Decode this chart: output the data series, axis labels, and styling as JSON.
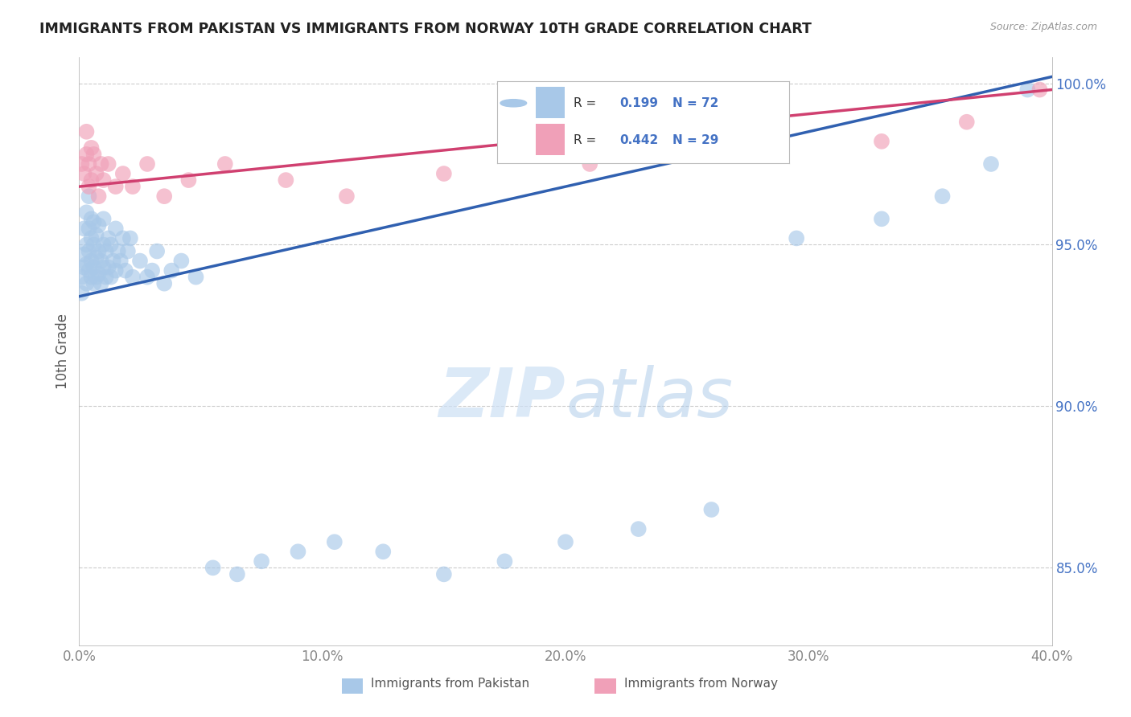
{
  "title": "IMMIGRANTS FROM PAKISTAN VS IMMIGRANTS FROM NORWAY 10TH GRADE CORRELATION CHART",
  "source": "Source: ZipAtlas.com",
  "ylabel": "10th Grade",
  "xlim": [
    0.0,
    0.4
  ],
  "ylim": [
    0.826,
    1.008
  ],
  "yticks": [
    0.85,
    0.9,
    0.95,
    1.0
  ],
  "ytick_labels": [
    "85.0%",
    "90.0%",
    "95.0%",
    "100.0%"
  ],
  "xticks": [
    0.0,
    0.1,
    0.2,
    0.3,
    0.4
  ],
  "xtick_labels": [
    "0.0%",
    "10.0%",
    "20.0%",
    "30.0%",
    "40.0%"
  ],
  "legend_labels": [
    "Immigrants from Pakistan",
    "Immigrants from Norway"
  ],
  "R_pakistan": 0.199,
  "N_pakistan": 72,
  "R_norway": 0.442,
  "N_norway": 29,
  "color_pakistan": "#A8C8E8",
  "color_norway": "#F0A0B8",
  "line_color_pakistan": "#3060B0",
  "line_color_norway": "#D04070",
  "line_color_text": "#4472C4",
  "pak_x": [
    0.001,
    0.001,
    0.002,
    0.002,
    0.002,
    0.003,
    0.003,
    0.003,
    0.003,
    0.004,
    0.004,
    0.004,
    0.004,
    0.005,
    0.005,
    0.005,
    0.005,
    0.006,
    0.006,
    0.006,
    0.006,
    0.007,
    0.007,
    0.007,
    0.008,
    0.008,
    0.008,
    0.009,
    0.009,
    0.01,
    0.01,
    0.01,
    0.011,
    0.011,
    0.012,
    0.012,
    0.013,
    0.013,
    0.014,
    0.015,
    0.015,
    0.016,
    0.017,
    0.018,
    0.019,
    0.02,
    0.021,
    0.022,
    0.025,
    0.028,
    0.03,
    0.032,
    0.035,
    0.038,
    0.042,
    0.048,
    0.055,
    0.065,
    0.075,
    0.09,
    0.105,
    0.125,
    0.15,
    0.175,
    0.2,
    0.23,
    0.26,
    0.295,
    0.33,
    0.355,
    0.375,
    0.39
  ],
  "pak_y": [
    0.935,
    0.94,
    0.943,
    0.947,
    0.955,
    0.938,
    0.944,
    0.95,
    0.96,
    0.942,
    0.948,
    0.955,
    0.965,
    0.94,
    0.945,
    0.952,
    0.958,
    0.938,
    0.943,
    0.95,
    0.957,
    0.94,
    0.946,
    0.953,
    0.941,
    0.948,
    0.956,
    0.938,
    0.945,
    0.943,
    0.95,
    0.958,
    0.94,
    0.948,
    0.943,
    0.952,
    0.94,
    0.95,
    0.945,
    0.942,
    0.955,
    0.948,
    0.945,
    0.952,
    0.942,
    0.948,
    0.952,
    0.94,
    0.945,
    0.94,
    0.942,
    0.948,
    0.938,
    0.942,
    0.945,
    0.94,
    0.85,
    0.848,
    0.852,
    0.855,
    0.858,
    0.855,
    0.848,
    0.852,
    0.858,
    0.862,
    0.868,
    0.952,
    0.958,
    0.965,
    0.975,
    0.998
  ],
  "nor_x": [
    0.001,
    0.002,
    0.003,
    0.003,
    0.004,
    0.004,
    0.005,
    0.005,
    0.006,
    0.007,
    0.008,
    0.009,
    0.01,
    0.012,
    0.015,
    0.018,
    0.022,
    0.028,
    0.035,
    0.045,
    0.06,
    0.085,
    0.11,
    0.15,
    0.21,
    0.27,
    0.33,
    0.365,
    0.395
  ],
  "nor_y": [
    0.975,
    0.972,
    0.978,
    0.985,
    0.968,
    0.975,
    0.97,
    0.98,
    0.978,
    0.972,
    0.965,
    0.975,
    0.97,
    0.975,
    0.968,
    0.972,
    0.968,
    0.975,
    0.965,
    0.97,
    0.975,
    0.97,
    0.965,
    0.972,
    0.975,
    0.98,
    0.982,
    0.988,
    0.998
  ],
  "trend_pak_x0": 0.0,
  "trend_pak_x1": 0.4,
  "trend_pak_y0": 0.934,
  "trend_pak_y1": 1.002,
  "trend_nor_x0": 0.0,
  "trend_nor_x1": 0.4,
  "trend_nor_y0": 0.968,
  "trend_nor_y1": 0.998
}
